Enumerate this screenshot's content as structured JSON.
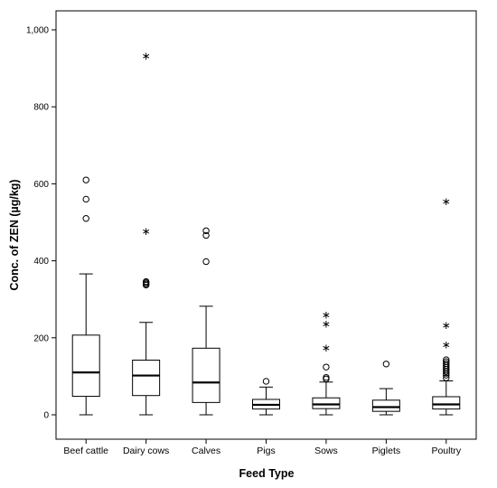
{
  "chart_data": {
    "type": "boxplot",
    "title": "",
    "xlabel": "Feed Type",
    "ylabel": "Conc. of ZEN (µg/kg)",
    "ylim": [
      0,
      1000
    ],
    "yticks": [
      0,
      200,
      400,
      600,
      800,
      1000
    ],
    "ytick_labels": [
      "0",
      "200",
      "400",
      "600",
      "800",
      "1,000"
    ],
    "categories": [
      "Beef cattle",
      "Dairy cows",
      "Calves",
      "Pigs",
      "Sows",
      "Piglets",
      "Poultry"
    ],
    "boxes": [
      {
        "category": "Beef cattle",
        "whisker_low": 0,
        "q1": 48,
        "median": 110,
        "q3": 207,
        "whisker_high": 366,
        "outliers": [
          510,
          560,
          610
        ],
        "extremes": []
      },
      {
        "category": "Dairy cows",
        "whisker_low": 0,
        "q1": 50,
        "median": 102,
        "q3": 142,
        "whisker_high": 240,
        "outliers": [
          337,
          340,
          343,
          346
        ],
        "extremes": [
          480,
          935
        ]
      },
      {
        "category": "Calves",
        "whisker_low": 0,
        "q1": 32,
        "median": 84,
        "q3": 173,
        "whisker_high": 282,
        "outliers": [
          398,
          466,
          478
        ],
        "extremes": []
      },
      {
        "category": "Pigs",
        "whisker_low": 0,
        "q1": 15,
        "median": 26,
        "q3": 40,
        "whisker_high": 72,
        "outliers": [
          87
        ],
        "extremes": []
      },
      {
        "category": "Sows",
        "whisker_low": 0,
        "q1": 16,
        "median": 27,
        "q3": 44,
        "whisker_high": 85,
        "outliers": [
          93,
          97,
          124
        ],
        "extremes": [
          177,
          240,
          263
        ]
      },
      {
        "category": "Piglets",
        "whisker_low": 0,
        "q1": 9,
        "median": 20,
        "q3": 38,
        "whisker_high": 68,
        "outliers": [
          132
        ],
        "extremes": []
      },
      {
        "category": "Poultry",
        "whisker_low": 0,
        "q1": 15,
        "median": 27,
        "q3": 47,
        "whisker_high": 88,
        "outliers": [
          96,
          103,
          108,
          113,
          118,
          123,
          128,
          133,
          138,
          143
        ],
        "extremes": [
          186,
          236,
          558
        ]
      }
    ],
    "outlier_marker": "circle",
    "extreme_marker": "asterisk",
    "grid": false
  }
}
